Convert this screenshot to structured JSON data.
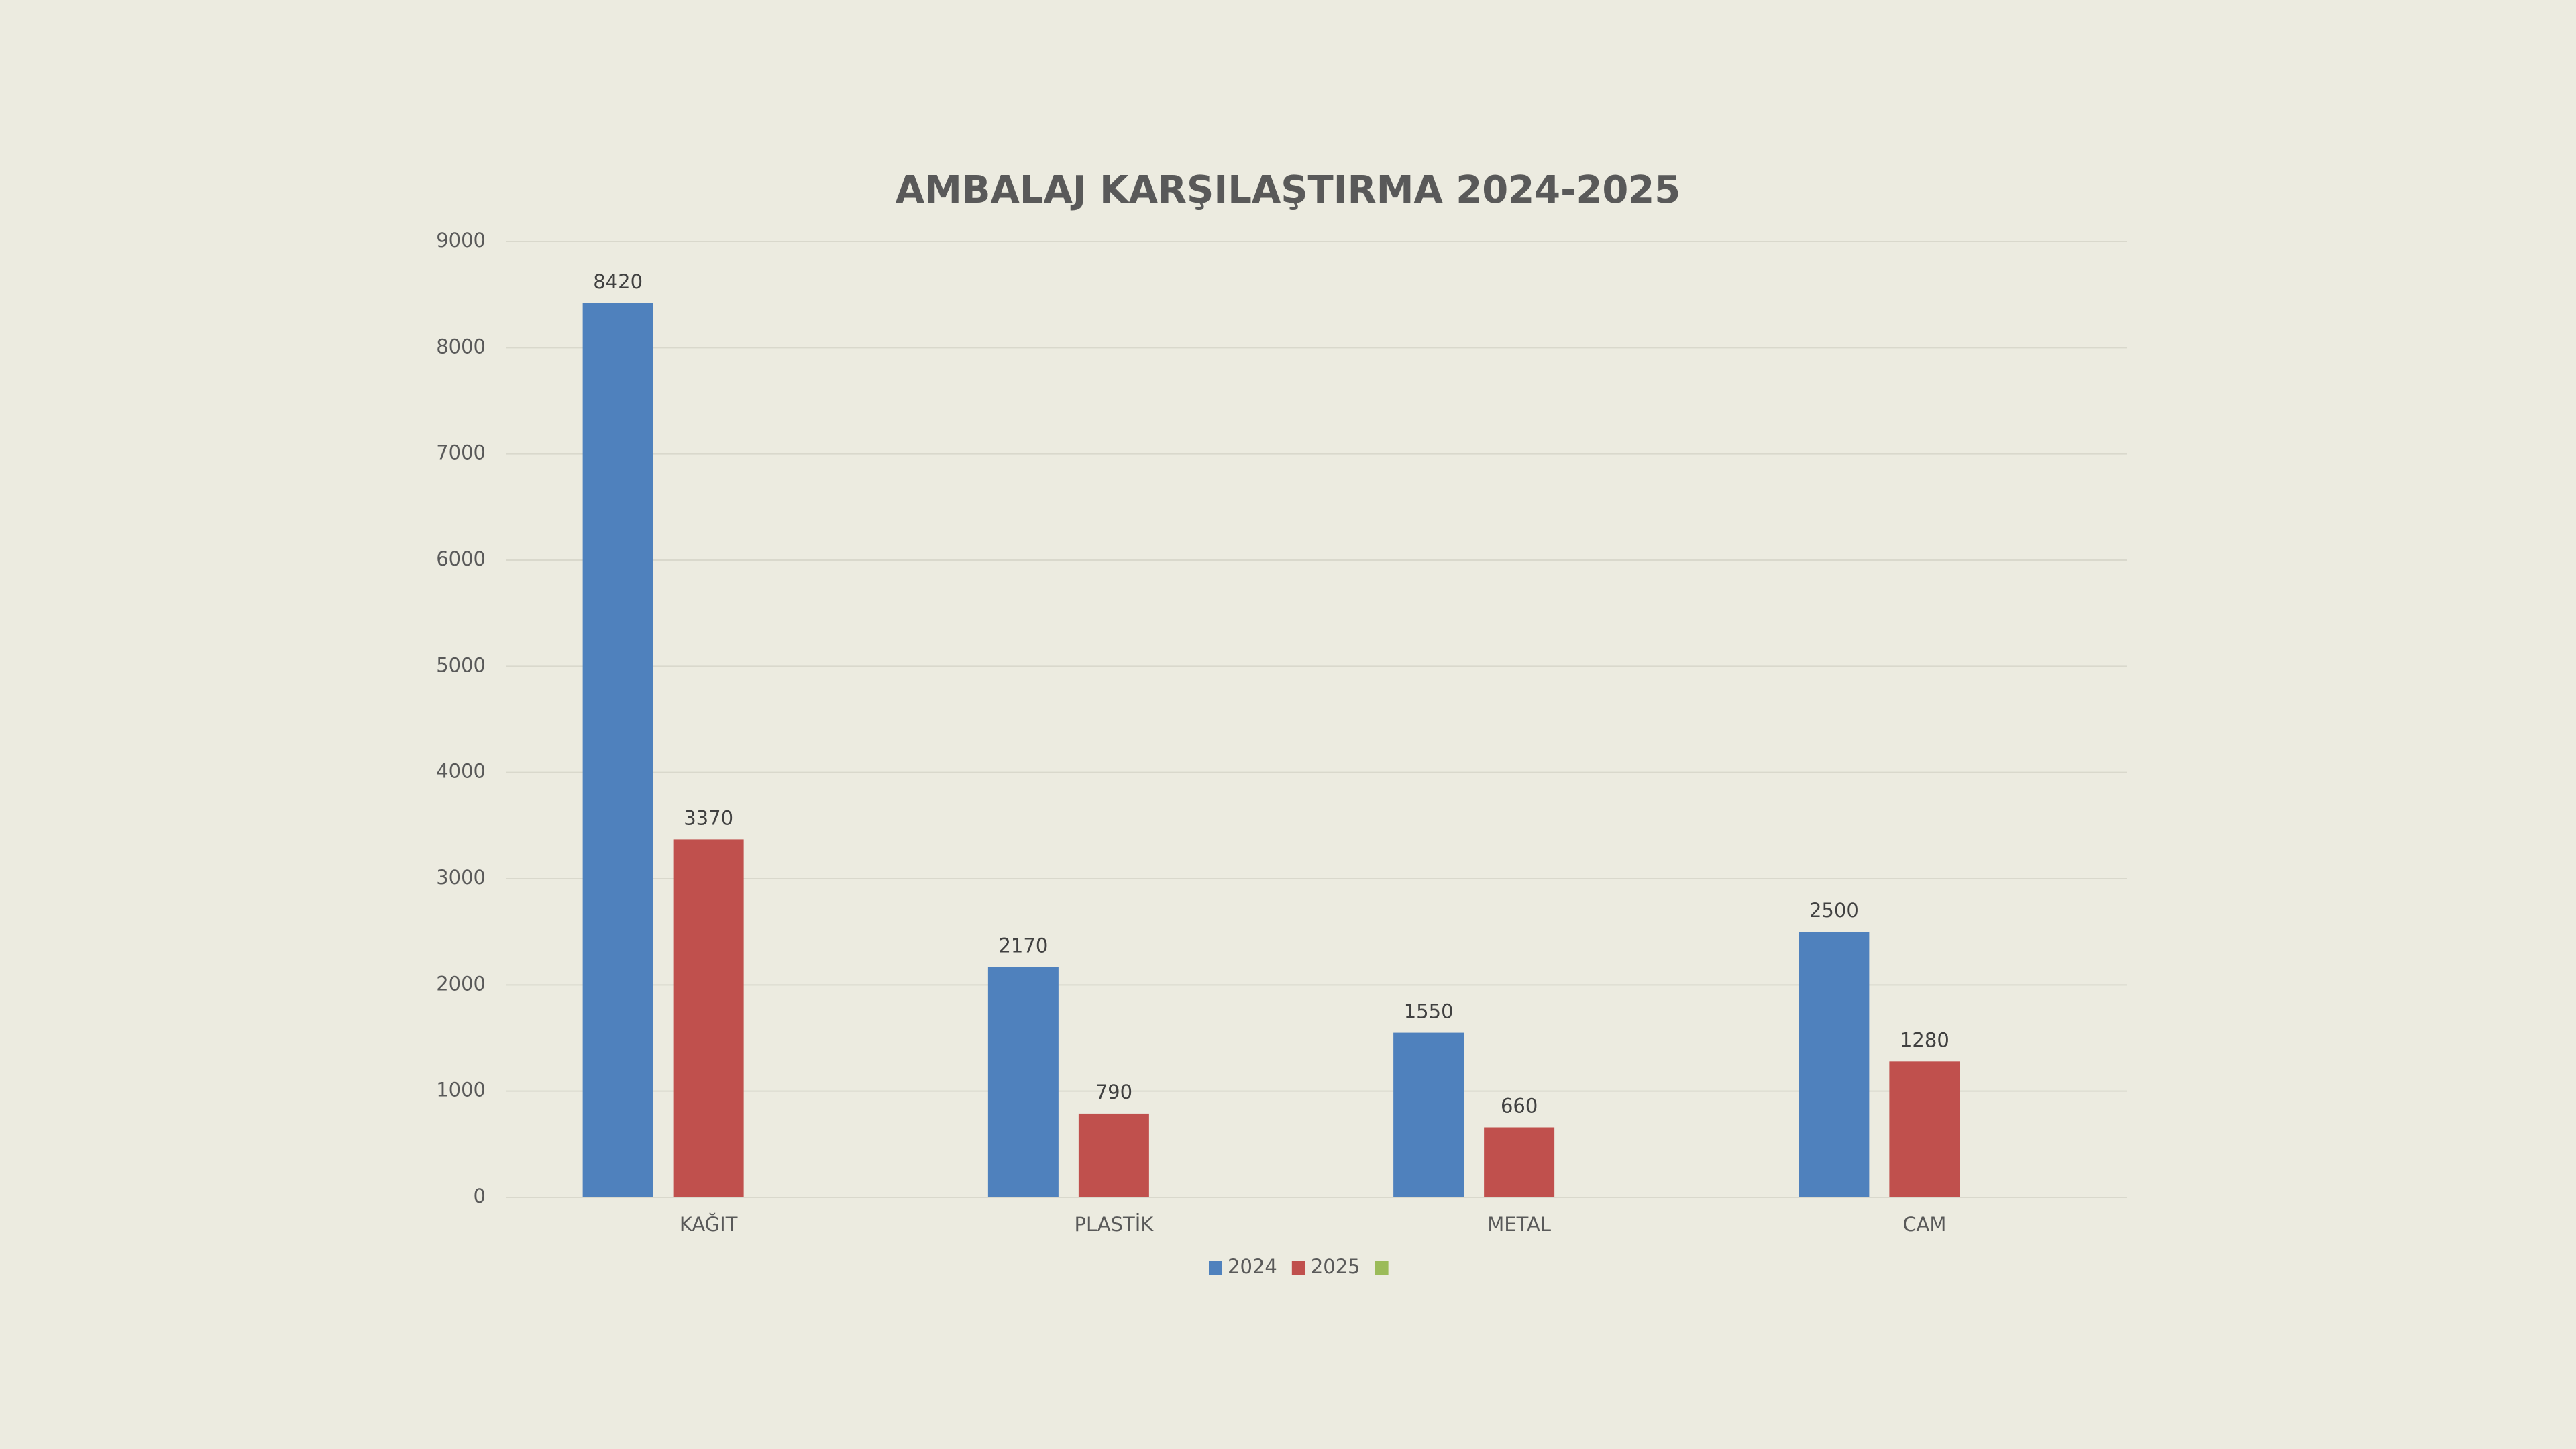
{
  "chart_data": {
    "type": "bar",
    "title": "AMBALAJ KARŞILAŞTIRMA 2024-2025",
    "categories": [
      "KAĞIT",
      "PLASTİK",
      "METAL",
      "CAM"
    ],
    "series": [
      {
        "name": "2024",
        "color": "#4f81bd",
        "values": [
          8420,
          2170,
          1550,
          2500
        ]
      },
      {
        "name": "2025",
        "color": "#c0504d",
        "values": [
          3370,
          790,
          660,
          1280
        ]
      },
      {
        "name": null,
        "color": "#9bbb59",
        "values": [
          null,
          null,
          null,
          null
        ]
      }
    ],
    "ylim": [
      0,
      9000
    ],
    "yticks": [
      0,
      1000,
      2000,
      3000,
      4000,
      5000,
      6000,
      7000,
      8000,
      9000
    ],
    "grid": true,
    "legend": "bottom"
  }
}
